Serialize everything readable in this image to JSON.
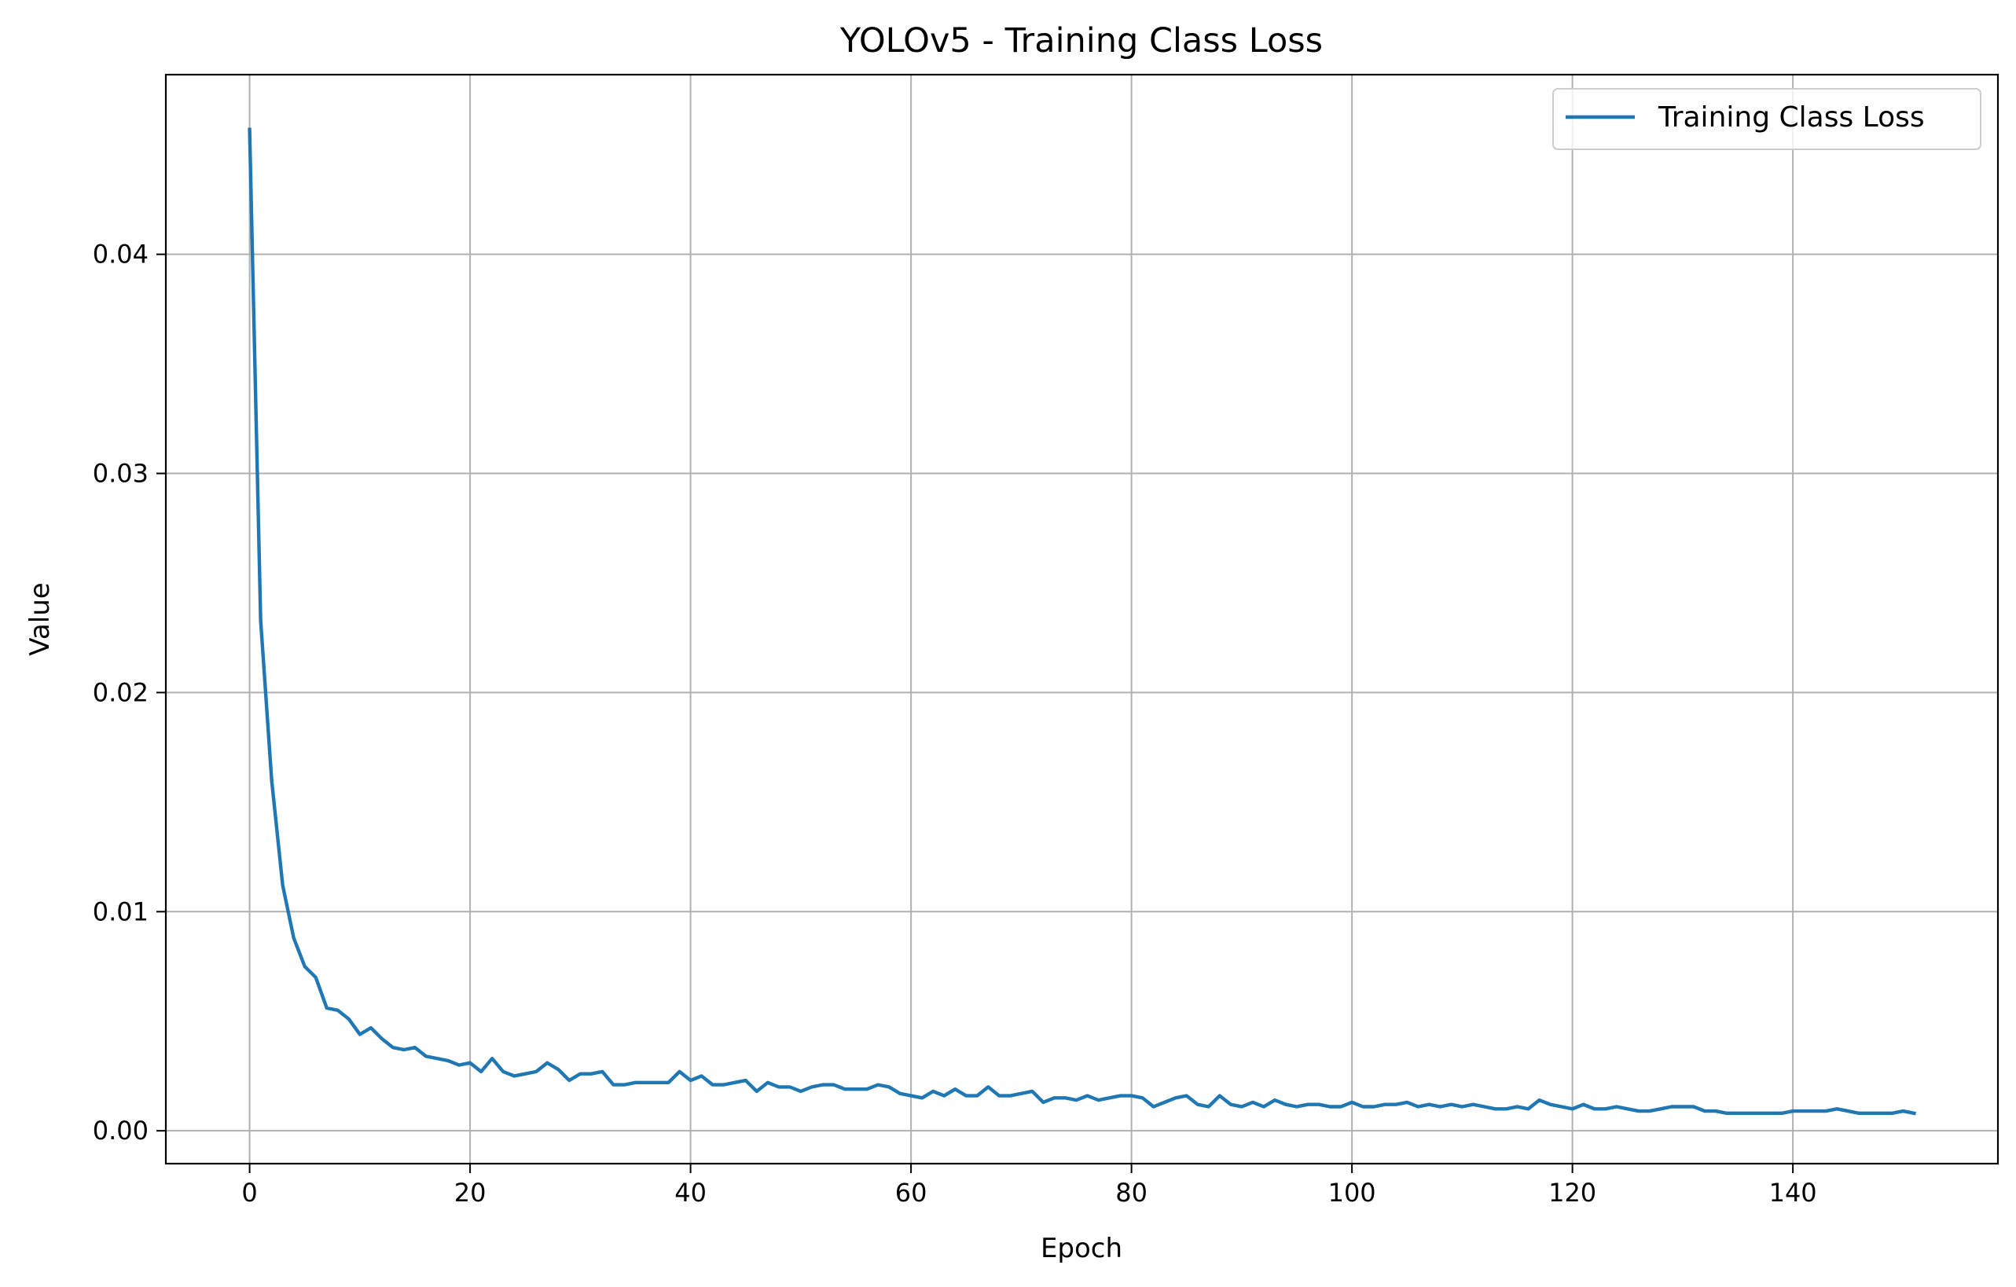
{
  "chart_data": {
    "type": "line",
    "title": "YOLOv5 - Training Class Loss",
    "xlabel": "Epoch",
    "ylabel": "Value",
    "xlim": [
      -7.6,
      158.6
    ],
    "ylim": [
      -0.0015,
      0.0482
    ],
    "xticks": [
      0,
      20,
      40,
      60,
      80,
      100,
      120,
      140
    ],
    "yticks": [
      0.0,
      0.01,
      0.02,
      0.03,
      0.04
    ],
    "ytick_labels": [
      "0.00",
      "0.01",
      "0.02",
      "0.03",
      "0.04"
    ],
    "grid": true,
    "legend_position": "top-right",
    "series": [
      {
        "name": "Training Class Loss",
        "color": "#1f77b4",
        "x": [
          0,
          1,
          2,
          3,
          4,
          5,
          6,
          7,
          8,
          9,
          10,
          11,
          12,
          13,
          14,
          15,
          16,
          17,
          18,
          19,
          20,
          21,
          22,
          23,
          24,
          25,
          26,
          27,
          28,
          29,
          30,
          31,
          32,
          33,
          34,
          35,
          36,
          37,
          38,
          39,
          40,
          41,
          42,
          43,
          44,
          45,
          46,
          47,
          48,
          49,
          50,
          51,
          52,
          53,
          54,
          55,
          56,
          57,
          58,
          59,
          60,
          61,
          62,
          63,
          64,
          65,
          66,
          67,
          68,
          69,
          70,
          71,
          72,
          73,
          74,
          75,
          76,
          77,
          78,
          79,
          80,
          81,
          82,
          83,
          84,
          85,
          86,
          87,
          88,
          89,
          90,
          91,
          92,
          93,
          94,
          95,
          96,
          97,
          98,
          99,
          100,
          101,
          102,
          103,
          104,
          105,
          106,
          107,
          108,
          109,
          110,
          111,
          112,
          113,
          114,
          115,
          116,
          117,
          118,
          119,
          120,
          121,
          122,
          123,
          124,
          125,
          126,
          127,
          128,
          129,
          130,
          131,
          132,
          133,
          134,
          135,
          136,
          137,
          138,
          139,
          140,
          141,
          142,
          143,
          144,
          145,
          146,
          147,
          148,
          149,
          150,
          151
        ],
        "values": [
          0.0457,
          0.0233,
          0.016,
          0.0112,
          0.0088,
          0.0075,
          0.007,
          0.0056,
          0.0055,
          0.0051,
          0.0044,
          0.0047,
          0.0042,
          0.0038,
          0.0037,
          0.0038,
          0.0034,
          0.0033,
          0.0032,
          0.003,
          0.0031,
          0.0027,
          0.0033,
          0.0027,
          0.0025,
          0.0026,
          0.0027,
          0.0031,
          0.0028,
          0.0023,
          0.0026,
          0.0026,
          0.0027,
          0.0021,
          0.0021,
          0.0022,
          0.0022,
          0.0022,
          0.0022,
          0.0027,
          0.0023,
          0.0025,
          0.0021,
          0.0021,
          0.0022,
          0.0023,
          0.0018,
          0.0022,
          0.002,
          0.002,
          0.0018,
          0.002,
          0.0021,
          0.0021,
          0.0019,
          0.0019,
          0.0019,
          0.0021,
          0.002,
          0.0017,
          0.0016,
          0.0015,
          0.0018,
          0.0016,
          0.0019,
          0.0016,
          0.0016,
          0.002,
          0.0016,
          0.0016,
          0.0017,
          0.0018,
          0.0013,
          0.0015,
          0.0015,
          0.0014,
          0.0016,
          0.0014,
          0.0015,
          0.0016,
          0.0016,
          0.0015,
          0.0011,
          0.0013,
          0.0015,
          0.0016,
          0.0012,
          0.0011,
          0.0016,
          0.0012,
          0.0011,
          0.0013,
          0.0011,
          0.0014,
          0.0012,
          0.0011,
          0.0012,
          0.0012,
          0.0011,
          0.0011,
          0.0013,
          0.0011,
          0.0011,
          0.0012,
          0.0012,
          0.0013,
          0.0011,
          0.0012,
          0.0011,
          0.0012,
          0.0011,
          0.0012,
          0.0011,
          0.001,
          0.001,
          0.0011,
          0.001,
          0.0014,
          0.0012,
          0.0011,
          0.001,
          0.0012,
          0.001,
          0.001,
          0.0011,
          0.001,
          0.0009,
          0.0009,
          0.001,
          0.0011,
          0.0011,
          0.0011,
          0.0009,
          0.0009,
          0.0008,
          0.0008,
          0.0008,
          0.0008,
          0.0008,
          0.0008,
          0.0009,
          0.0009,
          0.0009,
          0.0009,
          0.001,
          0.0009,
          0.0008,
          0.0008,
          0.0008,
          0.0008,
          0.0009,
          0.0008
        ]
      }
    ]
  }
}
